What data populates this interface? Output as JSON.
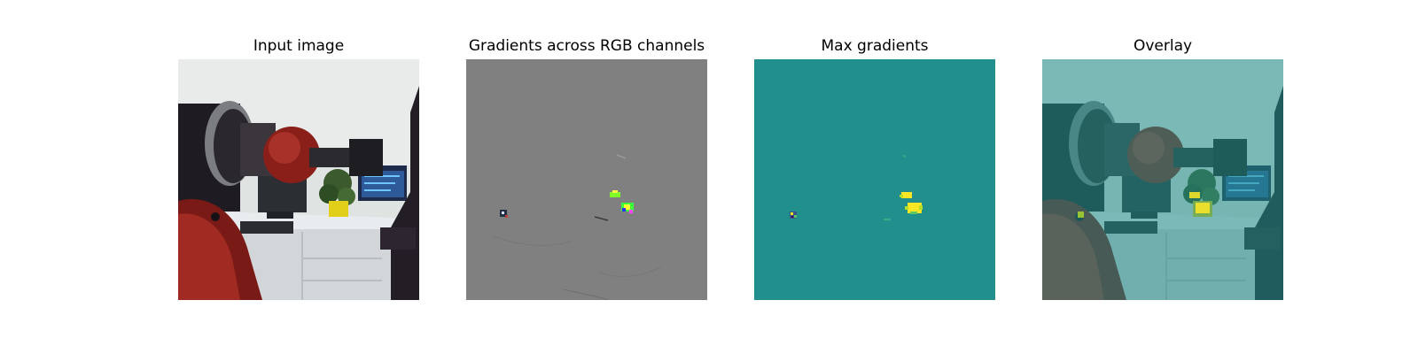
{
  "figure": {
    "panels": [
      {
        "title": "Input image"
      },
      {
        "title": "Gradients across RGB channels"
      },
      {
        "title": "Max gradients"
      },
      {
        "title": "Overlay"
      }
    ]
  },
  "colors": {
    "gradient_background": "#808080",
    "viridis_background": "#21908d",
    "viridis_peak": "#fde725",
    "robot_red": "#8a1f1a",
    "robot_dark": "#1e1b22",
    "wall": "#dde2e0",
    "overlay_tint": "#5fb0ab"
  }
}
